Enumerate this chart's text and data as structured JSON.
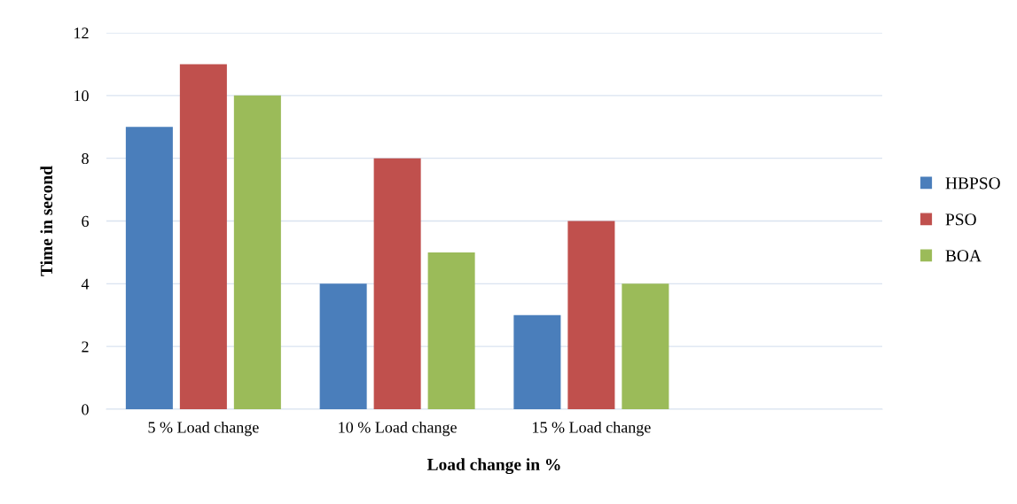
{
  "chart_data": {
    "type": "bar",
    "xlabel": "Load change in %",
    "ylabel": "Time in second",
    "categories": [
      "5 % Load change",
      "10 % Load change",
      "15 % Load change",
      null
    ],
    "series": [
      {
        "name": "HBPSO",
        "color": "#4a7ebb",
        "values": [
          9,
          4,
          3,
          null
        ]
      },
      {
        "name": "PSO",
        "color": "#c0504d",
        "values": [
          11,
          8,
          6,
          null
        ]
      },
      {
        "name": "BOA",
        "color": "#9bbb59",
        "values": [
          10,
          5,
          4,
          null
        ]
      }
    ],
    "ylim": [
      0,
      12
    ],
    "yticks": [
      0,
      2,
      4,
      6,
      8,
      10,
      12
    ],
    "grid": "y",
    "legend": "right"
  }
}
